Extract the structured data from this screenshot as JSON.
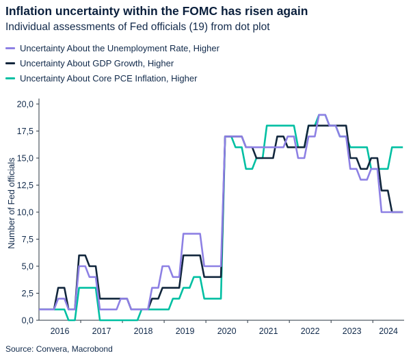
{
  "header": {
    "title": "Inflation uncertainty within the FOMC has risen again",
    "subtitle": "Individual assessments of Fed officials (19) from dot plot"
  },
  "source": "Source: Convera, Macrobond",
  "colors": {
    "accent_purple": "#8d80e4",
    "accent_navy": "#11263c",
    "accent_teal": "#00bfa2",
    "text_navy": "#10294a",
    "axis_line": "#2a3642"
  },
  "chart_data": {
    "type": "line",
    "step": true,
    "title": "Inflation uncertainty within the FOMC has risen again",
    "ylabel": "Number of Fed officials",
    "xlabel": "",
    "ylim": [
      0,
      20
    ],
    "grid": false,
    "legend_position": "top-left",
    "ytick_labels": [
      "0,0",
      "2,5",
      "5,0",
      "7,5",
      "10,0",
      "12,5",
      "15,0",
      "17,5",
      "20,0"
    ],
    "ytick_values": [
      0,
      2.5,
      5,
      7.5,
      10,
      12.5,
      15,
      17.5,
      20
    ],
    "xtick_labels": [
      "2016",
      "2017",
      "2018",
      "2019",
      "2020",
      "2021",
      "2022",
      "2023",
      "2024"
    ],
    "x_range": [
      2016.0,
      2024.75
    ],
    "dates": [
      "Dec 2015",
      "Mar 2016",
      "Jun 2016",
      "Sep 2016",
      "Dec 2016",
      "Mar 2017",
      "Jun 2017",
      "Sep 2017",
      "Dec 2017",
      "Mar 2018",
      "Jun 2018",
      "Sep 2018",
      "Dec 2018",
      "Mar 2019",
      "Jun 2019",
      "Sep 2019",
      "Dec 2019",
      "Jun 2020",
      "Sep 2020",
      "Dec 2020",
      "Mar 2021",
      "Jun 2021",
      "Sep 2021",
      "Dec 2021",
      "Mar 2022",
      "Jun 2022",
      "Sep 2022",
      "Dec 2022",
      "Mar 2023",
      "Jun 2023",
      "Sep 2023",
      "Dec 2023",
      "Mar 2024",
      "Jun 2024"
    ],
    "series": [
      {
        "name": "Uncertainty About the Unemployment Rate, Higher",
        "color": "#8d80e4",
        "values": [
          1,
          1,
          2,
          1,
          5,
          4,
          1,
          1,
          2,
          1,
          1,
          3,
          5,
          4,
          8,
          8,
          5,
          17,
          17,
          16,
          16,
          16,
          16,
          17,
          15,
          17,
          19,
          18,
          17,
          14,
          13,
          14,
          10,
          10
        ]
      },
      {
        "name": "Uncertainty About GDP Growth, Higher",
        "color": "#11263c",
        "values": [
          1,
          1,
          3,
          1,
          6,
          5,
          2,
          2,
          2,
          1,
          1,
          2,
          3,
          3,
          6,
          6,
          4,
          17,
          17,
          16,
          15,
          15,
          17,
          16,
          16,
          18,
          18,
          18,
          18,
          15,
          14,
          15,
          12,
          10
        ]
      },
      {
        "name": "Uncertainty About Core PCE Inflation, Higher",
        "color": "#00bfa2",
        "values": [
          1,
          1,
          1,
          0,
          3,
          3,
          0,
          0,
          0,
          0,
          1,
          1,
          1,
          2,
          3,
          4,
          2,
          17,
          16,
          14,
          15,
          18,
          18,
          18,
          16,
          18,
          19,
          18,
          17,
          16,
          16,
          14,
          14,
          16
        ]
      }
    ]
  }
}
